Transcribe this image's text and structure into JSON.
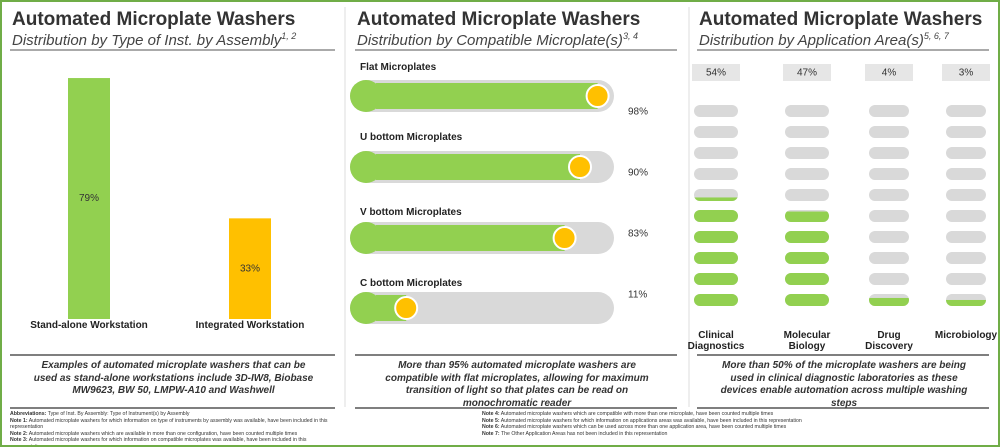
{
  "chart_data": [
    {
      "type": "bar",
      "title": "Automated Microplate Washers",
      "subtitle": "Distribution by Type of Inst. by Assembly",
      "subtitle_sup": "1, 2",
      "categories": [
        "Stand-alone Workstation",
        "Integrated Workstation"
      ],
      "values": [
        79,
        33
      ],
      "value_labels": [
        "79%",
        "33%"
      ],
      "colors": [
        "#92d050",
        "#ffc000"
      ],
      "ylim": [
        0,
        100
      ],
      "caption": "Examples of automated microplate washers that can be used as stand-alone workstations include 3D-IW8, Biobase MW9623, BW 50, LMPW-A10 and Washwell"
    },
    {
      "type": "progress",
      "title": "Automated Microplate Washers",
      "subtitle": "Distribution by Compatible Microplate(s)",
      "subtitle_sup": "3, 4",
      "categories": [
        "Flat Microplates",
        "U bottom Microplates",
        "V bottom Microplates",
        "C bottom Microplates"
      ],
      "values": [
        98,
        90,
        83,
        11
      ],
      "value_labels": [
        "98%",
        "90%",
        "83%",
        "11%"
      ],
      "color": "#92d050",
      "marker_color": "#ffc000",
      "xlim": [
        0,
        100
      ],
      "caption": "More than 95% automated microplate washers are compatible with flat microplates, allowing for maximum transition of light so that plates can be read on monochromatic reader"
    },
    {
      "type": "pictogram",
      "title": "Automated Microplate Washers",
      "subtitle": "Distribution by Application Area(s)",
      "subtitle_sup": "5, 6, 7",
      "categories": [
        "Clinical Diagnostics",
        "Molecular Biology",
        "Drug Discovery",
        "Microbiology"
      ],
      "values": [
        54,
        47,
        4,
        3
      ],
      "value_labels": [
        "54%",
        "47%",
        "4%",
        "3%"
      ],
      "color": "#92d050",
      "ylim": [
        0,
        100
      ],
      "caption": "More than 50% of the microplate washers are being used in clinical diagnostic laboratories as these devices enable automation across multiple washing steps"
    }
  ],
  "notes_left": [
    {
      "label": "Abbreviations:",
      "text": "Type of Inst. By Assembly: Type of Instrument(s) by Assembly"
    },
    {
      "label": "Note 1:",
      "text": "Automated microplate washers for which information on type of instruments by assembly was available, have been included in this representation"
    },
    {
      "label": "Note 2:",
      "text": "Automated microplate washers which are available in more than one configuration, have been counted multiple times"
    },
    {
      "label": "Note 3:",
      "text": "Automated microplate washers for which information on compatible microplates was available, have been included in this representation"
    }
  ],
  "notes_right": [
    {
      "label": "Note 4:",
      "text": "Automated microplate washers which are compatible with more than one microplate, have been counted multiple times"
    },
    {
      "label": "Note 5:",
      "text": "Automated microplate washers for which information on applications areas was available, have been included in this representation"
    },
    {
      "label": "Note 6:",
      "text": "Automated microplate washers which can be used across more than one application area, have been counted multiple times"
    },
    {
      "label": "Note 7:",
      "text": "The Other Application Areas has not been included in this representation"
    }
  ]
}
